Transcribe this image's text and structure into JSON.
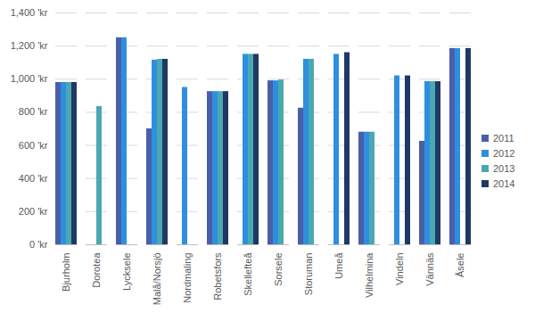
{
  "chart_data": {
    "type": "bar",
    "categories": [
      "Bjurholm",
      "Dorotea",
      "Lycksele",
      "Malå/Norsjö",
      "Nordmaling",
      "Robetsfors",
      "Skellefteå",
      "Sorsele",
      "Storuman",
      "Umeå",
      "Vilhelmina",
      "Vindeln",
      "Vännäs",
      "Åsele"
    ],
    "series": [
      {
        "name": "2011",
        "color": "#4a5fa8",
        "values": [
          980,
          null,
          1250,
          700,
          null,
          925,
          null,
          990,
          825,
          null,
          680,
          null,
          625,
          1185
        ]
      },
      {
        "name": "2012",
        "color": "#2e8fe0",
        "values": [
          980,
          null,
          1250,
          1115,
          950,
          925,
          1150,
          990,
          1120,
          1150,
          680,
          1020,
          985,
          1185
        ]
      },
      {
        "name": "2013",
        "color": "#4aa8b0",
        "values": [
          980,
          835,
          null,
          1120,
          null,
          925,
          1150,
          995,
          1120,
          null,
          680,
          null,
          985,
          null
        ]
      },
      {
        "name": "2014",
        "color": "#203864",
        "values": [
          980,
          null,
          null,
          1120,
          null,
          925,
          1150,
          null,
          null,
          1160,
          null,
          1020,
          985,
          1185
        ]
      }
    ],
    "ylim": [
      0,
      1400
    ],
    "yticks": [
      {
        "value": 0,
        "label": "0 'kr"
      },
      {
        "value": 200,
        "label": "200 'kr"
      },
      {
        "value": 400,
        "label": "400 'kr"
      },
      {
        "value": 600,
        "label": "600 'kr"
      },
      {
        "value": 800,
        "label": "800 'kr"
      },
      {
        "value": 1000,
        "label": "1,000 'kr"
      },
      {
        "value": 1200,
        "label": "1,200 'kr"
      },
      {
        "value": 1400,
        "label": "1,400 'kr"
      }
    ],
    "grid": true,
    "legend": "right"
  }
}
